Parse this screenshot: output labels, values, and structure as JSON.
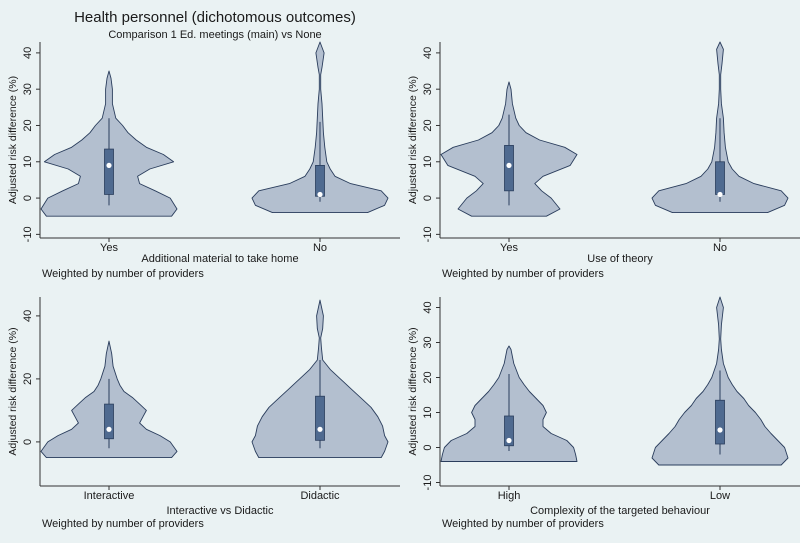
{
  "title": "Health personnel (dichotomous outcomes)",
  "subtitle": "Comparison 1 Ed. meetings (main) vs None",
  "chart_data": [
    {
      "type": "violin",
      "ylabel": "Adjusted risk difference (%)",
      "xlabel": "Additional material to take home",
      "note": "Weighted by number of providers",
      "ylim": [
        -11,
        43
      ],
      "yticks": [
        -10,
        0,
        10,
        20,
        30,
        40
      ],
      "categories": [
        "Yes",
        "No"
      ],
      "series": [
        {
          "name": "Yes",
          "median": 9,
          "q1": 1,
          "q3": 13.5,
          "whisker_low": -2,
          "whisker_high": 22,
          "min": -5,
          "max": 35,
          "density": [
            [
              -5,
              0.92
            ],
            [
              -3,
              1.0
            ],
            [
              0,
              0.9
            ],
            [
              2,
              0.68
            ],
            [
              4,
              0.45
            ],
            [
              6,
              0.42
            ],
            [
              8,
              0.6
            ],
            [
              10,
              0.95
            ],
            [
              12,
              0.8
            ],
            [
              14,
              0.55
            ],
            [
              16,
              0.4
            ],
            [
              18,
              0.28
            ],
            [
              20,
              0.2
            ],
            [
              22,
              0.1
            ],
            [
              26,
              0.05
            ],
            [
              30,
              0.05
            ],
            [
              33,
              0.03
            ],
            [
              35,
              0
            ]
          ]
        },
        {
          "name": "No",
          "median": 1,
          "q1": 0.5,
          "q3": 9,
          "whisker_low": -1,
          "whisker_high": 21,
          "min": -4,
          "max": 43,
          "density": [
            [
              -4,
              0.7
            ],
            [
              -2,
              0.95
            ],
            [
              0,
              1.0
            ],
            [
              2,
              0.9
            ],
            [
              4,
              0.45
            ],
            [
              6,
              0.22
            ],
            [
              8,
              0.15
            ],
            [
              10,
              0.1
            ],
            [
              14,
              0.07
            ],
            [
              18,
              0.05
            ],
            [
              22,
              0.04
            ],
            [
              26,
              0.03
            ],
            [
              30,
              0.01
            ],
            [
              34,
              0.01
            ],
            [
              36,
              0.03
            ],
            [
              40,
              0.06
            ],
            [
              43,
              0
            ]
          ]
        }
      ]
    },
    {
      "type": "violin",
      "ylabel": "Adjusted risk difference (%)",
      "xlabel": "Use of theory",
      "note": "Weighted by number of providers",
      "ylim": [
        -11,
        43
      ],
      "yticks": [
        -10,
        0,
        10,
        20,
        30,
        40
      ],
      "categories": [
        "Yes",
        "No"
      ],
      "series": [
        {
          "name": "Yes",
          "median": 9,
          "q1": 2,
          "q3": 14.5,
          "whisker_low": -2,
          "whisker_high": 23,
          "min": -5,
          "max": 32,
          "density": [
            [
              -5,
              0.55
            ],
            [
              -3,
              0.75
            ],
            [
              0,
              0.62
            ],
            [
              2,
              0.48
            ],
            [
              4,
              0.38
            ],
            [
              6,
              0.5
            ],
            [
              9,
              0.9
            ],
            [
              12,
              1.0
            ],
            [
              14,
              0.82
            ],
            [
              16,
              0.45
            ],
            [
              18,
              0.25
            ],
            [
              20,
              0.15
            ],
            [
              22,
              0.1
            ],
            [
              26,
              0.05
            ],
            [
              30,
              0.03
            ],
            [
              32,
              0
            ]
          ]
        },
        {
          "name": "No",
          "median": 1,
          "q1": 1,
          "q3": 10,
          "whisker_low": -1,
          "whisker_high": 22,
          "min": -4,
          "max": 43,
          "density": [
            [
              -4,
              0.7
            ],
            [
              -2,
              0.95
            ],
            [
              0,
              1.0
            ],
            [
              2,
              0.9
            ],
            [
              4,
              0.5
            ],
            [
              6,
              0.28
            ],
            [
              8,
              0.18
            ],
            [
              10,
              0.12
            ],
            [
              14,
              0.08
            ],
            [
              18,
              0.06
            ],
            [
              22,
              0.05
            ],
            [
              26,
              0.02
            ],
            [
              30,
              0.01
            ],
            [
              34,
              0.01
            ],
            [
              37,
              0.03
            ],
            [
              41,
              0.05
            ],
            [
              43,
              0
            ]
          ]
        }
      ]
    },
    {
      "type": "violin",
      "ylabel": "Adjusted risk difference (%)",
      "xlabel": "Interactive vs Didactic",
      "note": "Weighted by number of providers",
      "ylim": [
        -14,
        46
      ],
      "yticks": [
        0,
        20,
        40
      ],
      "categories": [
        "Interactive",
        "Didactic"
      ],
      "series": [
        {
          "name": "Interactive",
          "median": 4,
          "q1": 1,
          "q3": 12,
          "whisker_low": -2,
          "whisker_high": 20,
          "min": -5,
          "max": 32,
          "density": [
            [
              -5,
              0.92
            ],
            [
              -3,
              1.0
            ],
            [
              0,
              0.9
            ],
            [
              2,
              0.75
            ],
            [
              4,
              0.55
            ],
            [
              6,
              0.45
            ],
            [
              8,
              0.5
            ],
            [
              10,
              0.55
            ],
            [
              12,
              0.45
            ],
            [
              14,
              0.35
            ],
            [
              16,
              0.22
            ],
            [
              18,
              0.16
            ],
            [
              20,
              0.12
            ],
            [
              24,
              0.06
            ],
            [
              28,
              0.04
            ],
            [
              32,
              0
            ]
          ]
        },
        {
          "name": "Didactic",
          "median": 4,
          "q1": 0.5,
          "q3": 14.5,
          "whisker_low": -2,
          "whisker_high": 26,
          "min": -5,
          "max": 45,
          "density": [
            [
              -5,
              0.9
            ],
            [
              -3,
              0.95
            ],
            [
              0,
              1.0
            ],
            [
              2,
              0.95
            ],
            [
              5,
              0.92
            ],
            [
              8,
              0.85
            ],
            [
              11,
              0.75
            ],
            [
              14,
              0.6
            ],
            [
              17,
              0.45
            ],
            [
              20,
              0.3
            ],
            [
              23,
              0.15
            ],
            [
              26,
              0.04
            ],
            [
              30,
              0.02
            ],
            [
              33,
              0.01
            ],
            [
              36,
              0.04
            ],
            [
              40,
              0.05
            ],
            [
              45,
              0
            ]
          ]
        }
      ]
    },
    {
      "type": "violin",
      "ylabel": "Adjusted risk difference (%)",
      "xlabel": "Complexity of the targeted behaviour",
      "note": "Weighted by number of providers",
      "ylim": [
        -11,
        43
      ],
      "yticks": [
        -10,
        0,
        10,
        20,
        30,
        40
      ],
      "categories": [
        "High",
        "Low"
      ],
      "series": [
        {
          "name": "High",
          "median": 2,
          "q1": 0.5,
          "q3": 9,
          "whisker_low": -1,
          "whisker_high": 21,
          "min": -4,
          "max": 29,
          "density": [
            [
              -4,
              1.0
            ],
            [
              -2,
              0.98
            ],
            [
              0,
              0.95
            ],
            [
              2,
              0.85
            ],
            [
              4,
              0.62
            ],
            [
              6,
              0.5
            ],
            [
              8,
              0.5
            ],
            [
              10,
              0.55
            ],
            [
              12,
              0.5
            ],
            [
              14,
              0.4
            ],
            [
              16,
              0.3
            ],
            [
              18,
              0.22
            ],
            [
              20,
              0.15
            ],
            [
              24,
              0.07
            ],
            [
              28,
              0.03
            ],
            [
              29,
              0
            ]
          ]
        },
        {
          "name": "Low",
          "median": 5,
          "q1": 1,
          "q3": 13.5,
          "whisker_low": -2,
          "whisker_high": 22,
          "min": -5,
          "max": 43,
          "density": [
            [
              -5,
              0.9
            ],
            [
              -3,
              1.0
            ],
            [
              0,
              0.95
            ],
            [
              2,
              0.85
            ],
            [
              4,
              0.75
            ],
            [
              6,
              0.66
            ],
            [
              8,
              0.6
            ],
            [
              10,
              0.52
            ],
            [
              12,
              0.42
            ],
            [
              14,
              0.35
            ],
            [
              16,
              0.25
            ],
            [
              18,
              0.18
            ],
            [
              20,
              0.12
            ],
            [
              24,
              0.05
            ],
            [
              28,
              0.02
            ],
            [
              31,
              0.01
            ],
            [
              35,
              0.02
            ],
            [
              40,
              0.05
            ],
            [
              43,
              0
            ]
          ]
        }
      ]
    }
  ],
  "colors": {
    "background": "#eaf2f3",
    "violin_fill": "#b3bfcf",
    "violin_stroke": "#2a3d5c",
    "box_fill": "#4f6a90",
    "box_stroke": "#2a3d5c",
    "axis": "#333333",
    "text": "#1a1a1a",
    "median_dot": "#ffffff"
  }
}
